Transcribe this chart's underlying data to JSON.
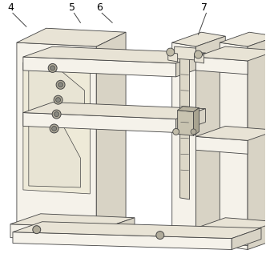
{
  "background_color": "#ffffff",
  "line_color": "#444444",
  "face_light": "#f5f2ea",
  "face_mid": "#e8e3d5",
  "face_dark": "#d8d3c5",
  "face_darker": "#c8c3b5",
  "label_fontsize": 9,
  "figsize": [
    3.32,
    3.42
  ],
  "dpi": 100
}
